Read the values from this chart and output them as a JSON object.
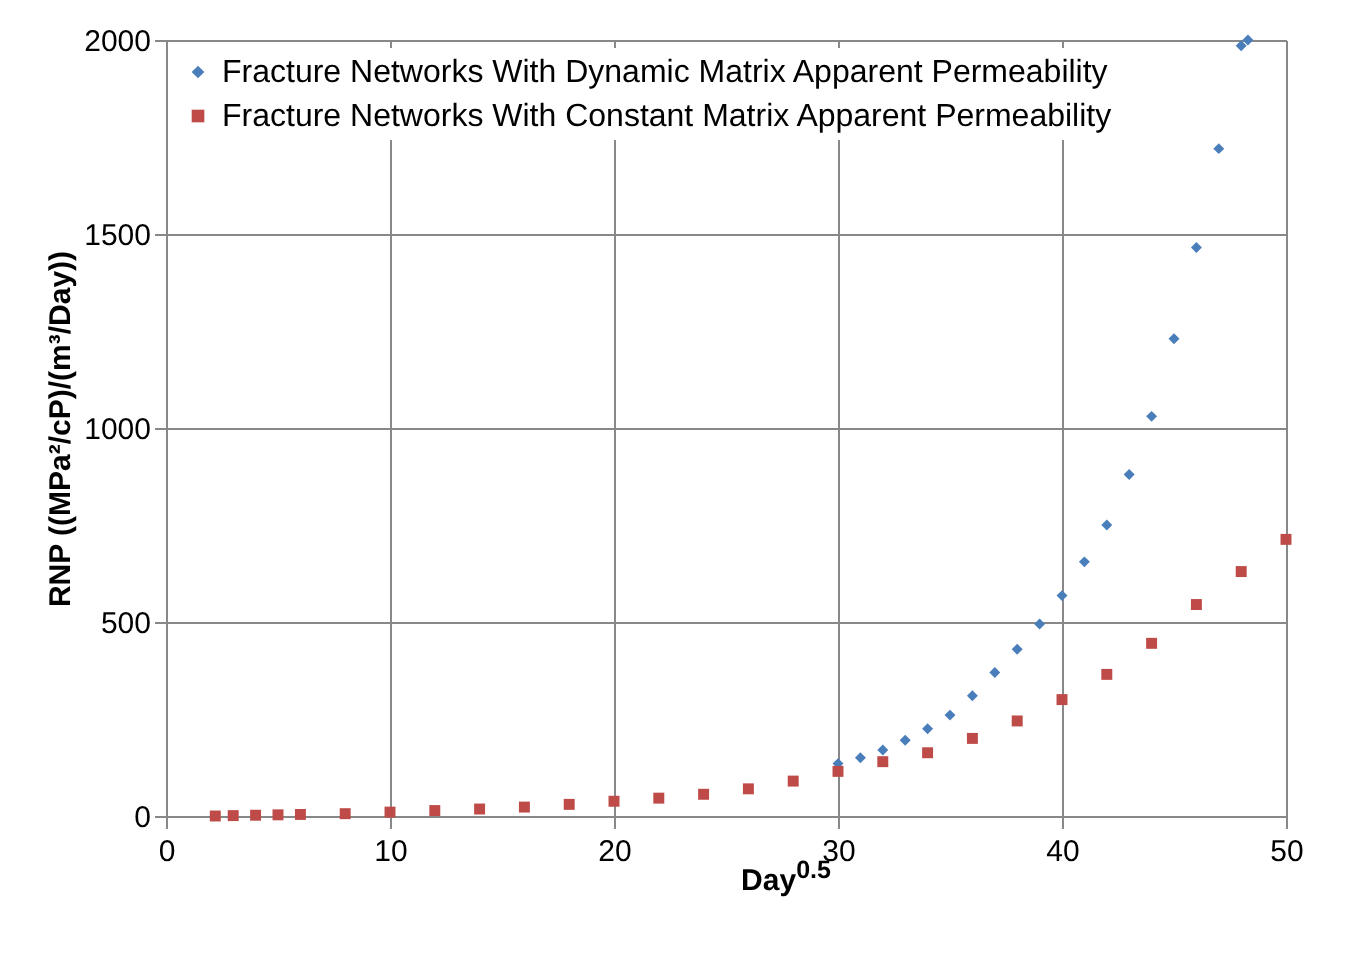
{
  "chart_data": {
    "type": "scatter",
    "xlabel": "Day$^{0.5}$",
    "ylabel": "RNP ((MPa²/cP)/(m³/Day))",
    "xlim": [
      0,
      50
    ],
    "xticks": [
      0,
      10,
      20,
      30,
      40,
      50
    ],
    "ylim": [
      0,
      2000
    ],
    "yticks": [
      0,
      500,
      1000,
      1500,
      2000
    ],
    "grid": true,
    "legend": "top left",
    "series": [
      {
        "name": "Fracture Networks With Dynamic Matrix Apparent Permeability",
        "color": "#4a7ebb",
        "marker": "diamond",
        "x": [
          30,
          31,
          32,
          33,
          34,
          35,
          36,
          37,
          38,
          39,
          40,
          41,
          42,
          43,
          44,
          45,
          46,
          47,
          48,
          48.3
        ],
        "values": [
          135,
          150,
          170,
          195,
          225,
          260,
          310,
          370,
          430,
          495,
          568,
          655,
          750,
          880,
          1030,
          1230,
          1465,
          1720,
          1985,
          2000
        ]
      },
      {
        "name": "Fracture Networks With Constant Matrix Apparent Permeability",
        "color": "#be4b48",
        "marker": "square",
        "x": [
          2.2,
          3,
          4,
          5,
          6,
          8,
          10,
          12,
          14,
          16,
          18,
          20,
          22,
          24,
          26,
          28,
          30,
          32,
          34,
          36,
          38,
          40,
          42,
          44,
          46,
          48,
          50
        ],
        "values": [
          0,
          1,
          2,
          3,
          4,
          6,
          10,
          14,
          18,
          23,
          30,
          38,
          46,
          56,
          70,
          90,
          115,
          140,
          163,
          200,
          245,
          300,
          365,
          445,
          545,
          630,
          713
        ]
      }
    ]
  }
}
